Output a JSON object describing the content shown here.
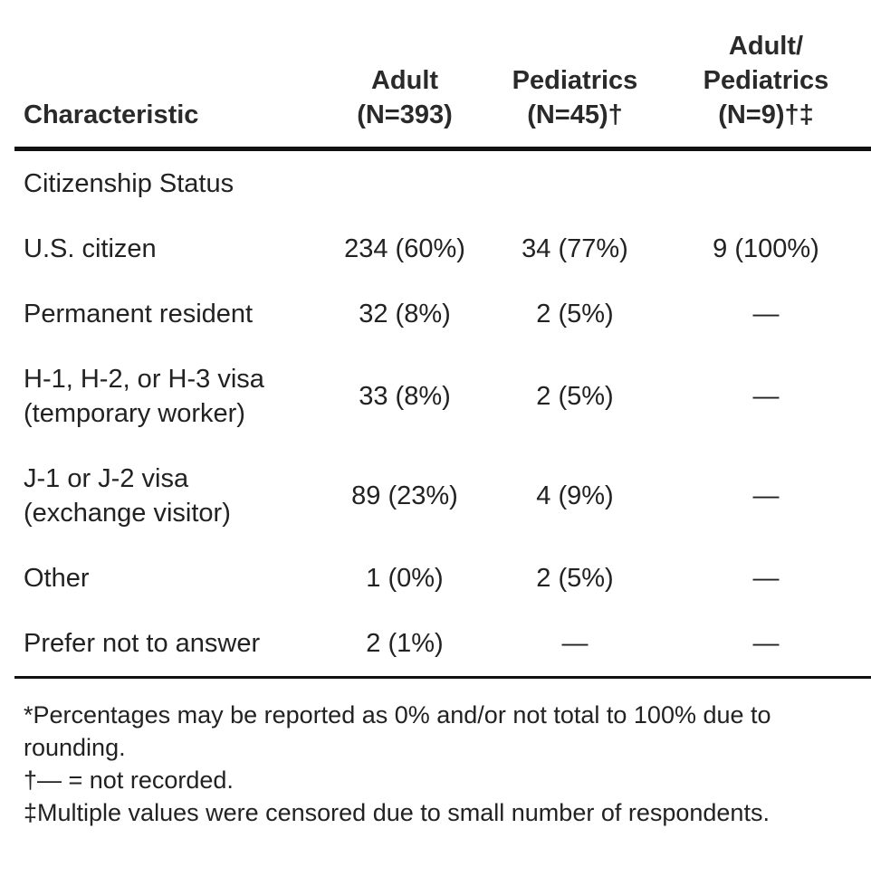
{
  "table": {
    "header": {
      "characteristic": "Characteristic",
      "adult": [
        "Adult",
        "(N=393)"
      ],
      "pediatrics": [
        "Pediatrics",
        "(N=45)†"
      ],
      "adult_pediatrics": [
        "Adult/",
        "Pediatrics",
        "(N=9)†‡"
      ]
    },
    "section_label": "Citizenship Status",
    "rows": [
      {
        "label": [
          "U.S. citizen"
        ],
        "adult": "234 (60%)",
        "pediatrics": "34 (77%)",
        "adult_pediatrics": "9 (100%)"
      },
      {
        "label": [
          "Permanent resident"
        ],
        "adult": "32 (8%)",
        "pediatrics": "2 (5%)",
        "adult_pediatrics": "—"
      },
      {
        "label": [
          "H-1, H-2, or H-3 visa",
          "(temporary worker)"
        ],
        "adult": "33 (8%)",
        "pediatrics": "2 (5%)",
        "adult_pediatrics": "—"
      },
      {
        "label": [
          "J-1 or J-2 visa",
          "(exchange visitor)"
        ],
        "adult": "89 (23%)",
        "pediatrics": "4 (9%)",
        "adult_pediatrics": "—"
      },
      {
        "label": [
          "Other"
        ],
        "adult": "1 (0%)",
        "pediatrics": "2 (5%)",
        "adult_pediatrics": "—"
      },
      {
        "label": [
          "Prefer not to answer"
        ],
        "adult": "2 (1%)",
        "pediatrics": "—",
        "adult_pediatrics": "—"
      }
    ]
  },
  "footnotes": [
    "*Percentages may be reported as 0% and/or not total to 100% due to rounding.",
    "†— = not recorded.",
    "‡Multiple values were censored due to small number of respondents."
  ]
}
